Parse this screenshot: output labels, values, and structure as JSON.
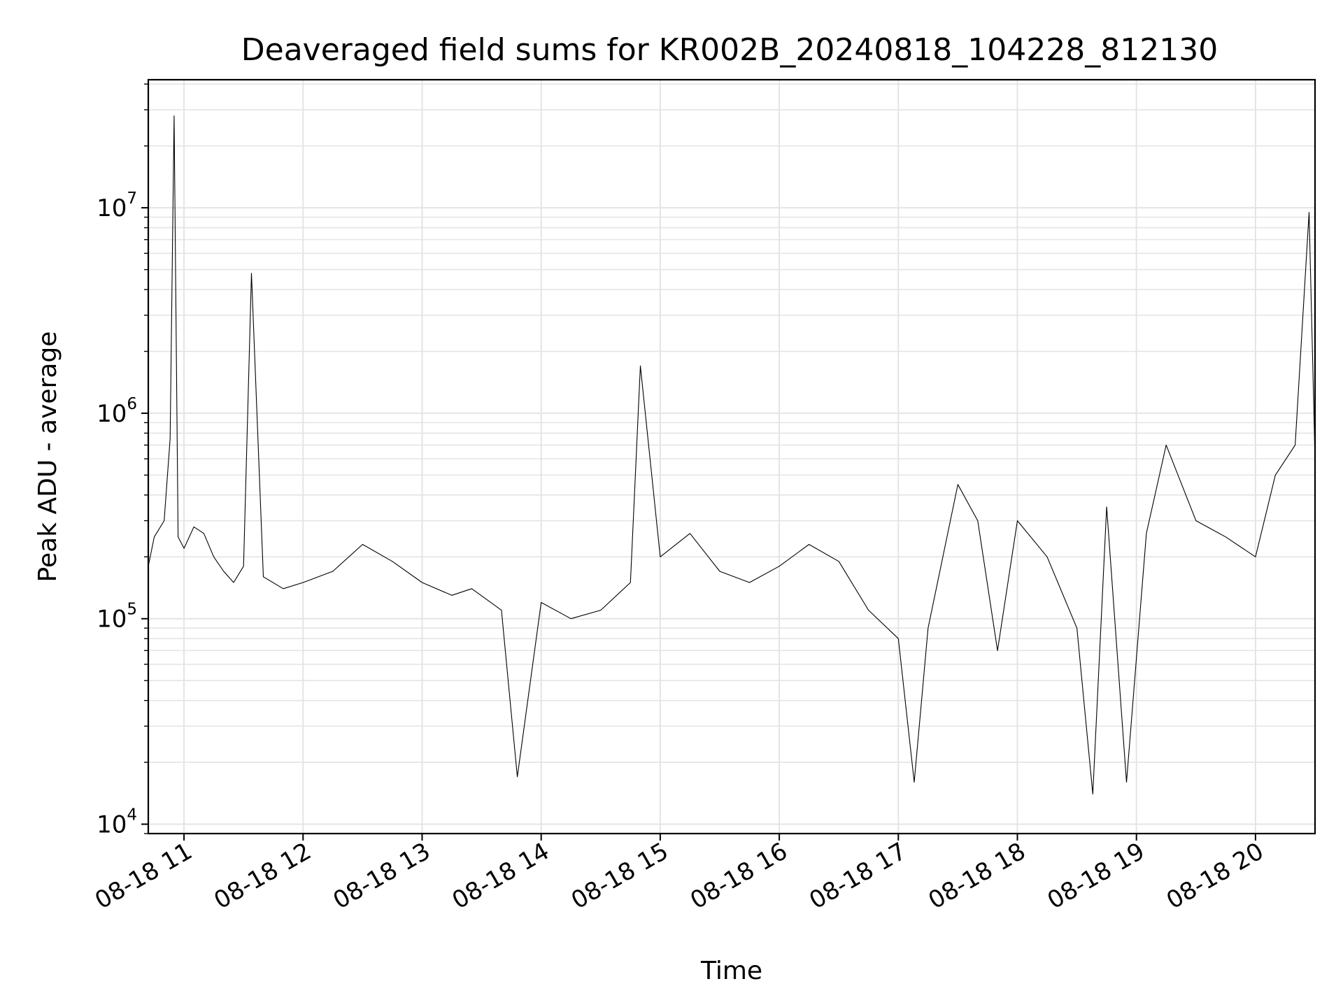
{
  "chart_data": {
    "type": "line",
    "title": "Deaveraged field sums for KR002B_20240818_104228_812130",
    "xlabel": "Time",
    "ylabel": "Peak ADU - average",
    "yscale": "log",
    "ylim": [
      9000,
      42000000
    ],
    "y_ticks": [
      {
        "base": "10",
        "exp": "4",
        "value": 10000
      },
      {
        "base": "10",
        "exp": "5",
        "value": 100000
      },
      {
        "base": "10",
        "exp": "6",
        "value": 1000000
      },
      {
        "base": "10",
        "exp": "7",
        "value": 10000000
      }
    ],
    "xlim": [
      "2024-08-18 10:42",
      "2024-08-18 20:30"
    ],
    "x_tick_labels": [
      "08-18 11",
      "08-18 12",
      "08-18 13",
      "08-18 14",
      "08-18 15",
      "08-18 16",
      "08-18 17",
      "08-18 18",
      "08-18 19",
      "08-18 20"
    ],
    "x_tick_times": [
      "2024-08-18 11:00",
      "2024-08-18 12:00",
      "2024-08-18 13:00",
      "2024-08-18 14:00",
      "2024-08-18 15:00",
      "2024-08-18 16:00",
      "2024-08-18 17:00",
      "2024-08-18 18:00",
      "2024-08-18 19:00",
      "2024-08-18 20:00"
    ],
    "grid": true,
    "line_color": "#000000",
    "series": [
      {
        "x": [
          "2024-08-18 10:42",
          "2024-08-18 10:45",
          "2024-08-18 10:50",
          "2024-08-18 10:53",
          "2024-08-18 10:55",
          "2024-08-18 10:57",
          "2024-08-18 11:00",
          "2024-08-18 11:05",
          "2024-08-18 11:10",
          "2024-08-18 11:15",
          "2024-08-18 11:20",
          "2024-08-18 11:25",
          "2024-08-18 11:30",
          "2024-08-18 11:34",
          "2024-08-18 11:40",
          "2024-08-18 11:50",
          "2024-08-18 12:00",
          "2024-08-18 12:15",
          "2024-08-18 12:30",
          "2024-08-18 12:45",
          "2024-08-18 13:00",
          "2024-08-18 13:15",
          "2024-08-18 13:25",
          "2024-08-18 13:40",
          "2024-08-18 13:48",
          "2024-08-18 14:00",
          "2024-08-18 14:15",
          "2024-08-18 14:30",
          "2024-08-18 14:45",
          "2024-08-18 14:50",
          "2024-08-18 15:00",
          "2024-08-18 15:15",
          "2024-08-18 15:30",
          "2024-08-18 15:45",
          "2024-08-18 16:00",
          "2024-08-18 16:15",
          "2024-08-18 16:30",
          "2024-08-18 16:45",
          "2024-08-18 17:00",
          "2024-08-18 17:08",
          "2024-08-18 17:15",
          "2024-08-18 17:30",
          "2024-08-18 17:40",
          "2024-08-18 17:50",
          "2024-08-18 18:00",
          "2024-08-18 18:15",
          "2024-08-18 18:30",
          "2024-08-18 18:38",
          "2024-08-18 18:45",
          "2024-08-18 18:55",
          "2024-08-18 19:05",
          "2024-08-18 19:15",
          "2024-08-18 19:30",
          "2024-08-18 19:45",
          "2024-08-18 20:00",
          "2024-08-18 20:10",
          "2024-08-18 20:20",
          "2024-08-18 20:27",
          "2024-08-18 20:30"
        ],
        "y": [
          180000,
          250000,
          300000,
          750000,
          28000000,
          250000,
          220000,
          280000,
          260000,
          200000,
          170000,
          150000,
          180000,
          4800000,
          160000,
          140000,
          150000,
          170000,
          230000,
          190000,
          150000,
          130000,
          140000,
          110000,
          17000,
          120000,
          100000,
          110000,
          150000,
          1700000,
          200000,
          260000,
          170000,
          150000,
          180000,
          230000,
          190000,
          110000,
          80000,
          16000,
          90000,
          450000,
          300000,
          70000,
          300000,
          200000,
          90000,
          14000,
          350000,
          16000,
          260000,
          700000,
          300000,
          250000,
          200000,
          500000,
          700000,
          9500000,
          600000
        ]
      }
    ]
  }
}
